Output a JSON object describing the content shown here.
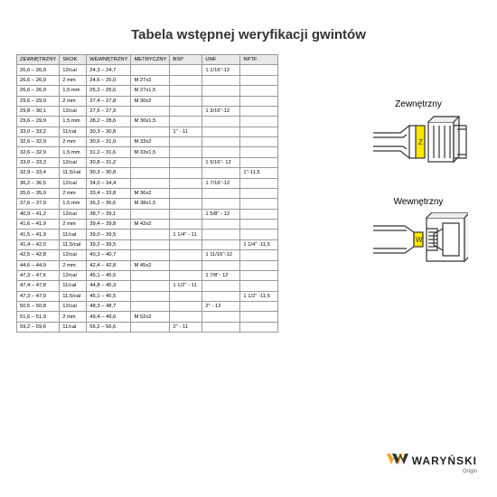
{
  "title": "Tabela wstępnej weryfikacji gwintów",
  "columns": [
    "ZEWNĘTRZNY",
    "SKOK",
    "WEWNĘTRZNY",
    "METRYCZNY",
    "BSP",
    "UNF",
    "NPTF"
  ],
  "rows": [
    [
      "26,6 – 26,9",
      "12/cal",
      "24,3 – 24,7",
      "",
      "",
      "1 1/16''-12",
      ""
    ],
    [
      "26,6 – 26,9",
      "2 mm",
      "24,6 – 25,0",
      "M 27x2",
      "",
      "",
      ""
    ],
    [
      "26,6 – 26,9",
      "1,5 mm",
      "25,2 – 25,6",
      "M 27x1,5",
      "",
      "",
      ""
    ],
    [
      "29,6 – 29,9",
      "2 mm",
      "27,4 – 27,8",
      "M 30x2",
      "",
      "",
      ""
    ],
    [
      "29,8 – 30,1",
      "12/cal",
      "27,6 – 27,9",
      "",
      "",
      "1 3/16''-12",
      ""
    ],
    [
      "29,6 – 29,9",
      "1,5 mm",
      "28,2 – 28,6",
      "M 30x1,5",
      "",
      "",
      ""
    ],
    [
      "33,0 – 33,2",
      "11/cal",
      "30,3 – 30,8",
      "",
      "1'' - 11",
      "",
      ""
    ],
    [
      "32,6 – 32,9",
      "2 mm",
      "30,6 – 31,0",
      "M 33x2",
      "",
      "",
      ""
    ],
    [
      "32,6 – 32,9",
      "1,5 mm",
      "31,2 – 31,6",
      "M 33x1,5",
      "",
      "",
      ""
    ],
    [
      "33,0 – 33,3",
      "12/cal",
      "30,8 – 31,2",
      "",
      "",
      "1 5/16''- 12",
      ""
    ],
    [
      "32,9 – 33,4",
      "11,5/cal",
      "30,3 – 30,8",
      "",
      "",
      "",
      "1''-11,5"
    ],
    [
      "36,2 – 36,5",
      "12/cal",
      "34,0 – 34,4",
      "",
      "",
      "1 7/16''-12",
      ""
    ],
    [
      "35,6 – 35,9",
      "2 mm",
      "33,4 – 33,8",
      "M 36x2",
      "",
      "",
      ""
    ],
    [
      "37,6 – 37,9",
      "1,5 mm",
      "36,2 – 36,6",
      "M 38x1,5",
      "",
      "",
      ""
    ],
    [
      "40,9 – 41,2",
      "12/cal",
      "38,7 – 39,1",
      "",
      "",
      "1 5/8'' - 12",
      ""
    ],
    [
      "41,6 – 41,9",
      "2 mm",
      "39,4 – 39,8",
      "M 42x2",
      "",
      "",
      ""
    ],
    [
      "41,5 – 41,9",
      "11/cal",
      "39,0 – 39,5",
      "",
      "1 1/4'' - 11",
      "",
      ""
    ],
    [
      "41,4 – 42,0",
      "11,5/cal",
      "39,2 – 39,5",
      "",
      "",
      "",
      "1 1/4'' -11,5"
    ],
    [
      "42,5 – 42,8",
      "12/cal",
      "40,3 – 40,7",
      "",
      "",
      "1 11/16''-12",
      ""
    ],
    [
      "44,6 – 44,9",
      "2 mm",
      "42,4 – 42,8",
      "M 45x2",
      "",
      "",
      ""
    ],
    [
      "47,3 – 47,6",
      "12/cal",
      "45,1 – 45,5",
      "",
      "",
      "1 7/8''- 12",
      ""
    ],
    [
      "47,4 – 47,8",
      "11/cal",
      "44,8 – 45,3",
      "",
      "1 1/2'' - 11",
      "",
      ""
    ],
    [
      "47,3 – 47,9",
      "11,5/cal",
      "45,1 – 45,5",
      "",
      "",
      "",
      "1 1/2'' -11,5"
    ],
    [
      "50,5 – 50,8",
      "12/cal",
      "48,3 – 48,7",
      "",
      "",
      "2'' - 12",
      ""
    ],
    [
      "51,6 – 51,9",
      "2 mm",
      "49,4 – 49,6",
      "M 52x2",
      "",
      "",
      ""
    ],
    [
      "59,2 – 59,6",
      "11/cal",
      "56,2 – 56,6",
      "",
      "2'' - 11",
      "",
      ""
    ]
  ],
  "side_labels": {
    "outer": "Zewnętrzny",
    "inner": "Wewnętrzny"
  },
  "diagram_letters": {
    "outer": "Z",
    "inner": "W"
  },
  "logo": {
    "name": "WARYŃSKI",
    "sub": "Origin"
  },
  "colors": {
    "header_bg": "#e8e8e8",
    "border": "#999",
    "text": "#333",
    "logo_accent": "#f5a623"
  }
}
